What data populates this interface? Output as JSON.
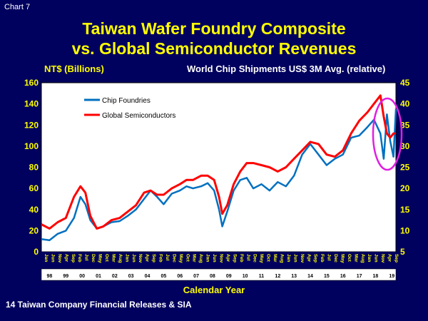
{
  "chart_label": "Chart  7",
  "title_line1": "Taiwan Wafer Foundry Composite",
  "title_line2": "vs. Global Semiconductor Revenues",
  "source": "14 Taiwan Company Financial Releases & SIA",
  "colors": {
    "background": "#00005e",
    "plot": "#ffffff",
    "foundries": "#0070c0",
    "global": "#ff0000",
    "highlight": "#e020e0",
    "axis_text": "#ffff00"
  },
  "chart_data": {
    "type": "line",
    "ylabel": "NT$ (Billions)",
    "y2label": "World Chip Shipments US$ 3M Avg. (relative)",
    "xlabel": "Calendar Year",
    "ylim": [
      0,
      160
    ],
    "y2lim": [
      5,
      45
    ],
    "yticks": [
      0,
      20,
      40,
      60,
      80,
      100,
      120,
      140,
      160
    ],
    "y2ticks": [
      5,
      10,
      15,
      20,
      25,
      30,
      35,
      40,
      45
    ],
    "xlim": [
      1998.0,
      2019.75
    ],
    "year_labels": [
      "98",
      "99",
      "00",
      "01",
      "02",
      "03",
      "04",
      "05",
      "06",
      "07",
      "08",
      "09",
      "10",
      "11",
      "12",
      "13",
      "14",
      "15",
      "16",
      "17",
      "18",
      "19"
    ],
    "month_ticks": [
      "Jan",
      "Jun",
      "Nov",
      "Apr",
      "Sep",
      "Feb",
      "Jul",
      "Dec",
      "May",
      "Oct",
      "Mar",
      "Aug",
      "Jan",
      "Jun",
      "Nov",
      "Apr",
      "Sep",
      "Feb",
      "Jul",
      "Dec",
      "May",
      "Oct",
      "Mar",
      "Aug",
      "Jan",
      "Jun",
      "Nov",
      "Apr",
      "Sep",
      "Feb",
      "Jul",
      "Dec",
      "May",
      "Oct",
      "Mar",
      "Aug",
      "Jan",
      "Jun",
      "Nov",
      "Apr",
      "Sep",
      "Feb",
      "Jul",
      "Dec",
      "May",
      "Oct",
      "Mar",
      "Aug",
      "Jan",
      "Jun",
      "Nov",
      "Apr",
      "Sep"
    ],
    "legend_placement": "top-left",
    "annotation": "ellipse highlighting 2018–2019",
    "series": [
      {
        "name": "Chip Foundries",
        "axis": "left",
        "x": [
          1998.0,
          1998.5,
          1999.0,
          1999.5,
          2000.0,
          2000.4,
          2000.7,
          2001.0,
          2001.4,
          2001.8,
          2002.3,
          2002.8,
          2003.3,
          2003.8,
          2004.3,
          2004.7,
          2005.1,
          2005.5,
          2006.0,
          2006.5,
          2006.9,
          2007.3,
          2007.8,
          2008.2,
          2008.6,
          2008.9,
          2009.1,
          2009.4,
          2009.8,
          2010.2,
          2010.6,
          2011.0,
          2011.5,
          2012.0,
          2012.5,
          2013.0,
          2013.5,
          2014.0,
          2014.5,
          2015.0,
          2015.5,
          2016.0,
          2016.5,
          2017.0,
          2017.5,
          2018.0,
          2018.4,
          2018.8,
          2019.0,
          2019.2,
          2019.4,
          2019.6,
          2019.75
        ],
        "y": [
          12,
          11,
          17,
          20,
          32,
          52,
          45,
          30,
          22,
          24,
          28,
          29,
          34,
          40,
          50,
          58,
          52,
          45,
          55,
          58,
          62,
          60,
          62,
          65,
          58,
          40,
          24,
          38,
          58,
          68,
          70,
          60,
          64,
          58,
          66,
          62,
          72,
          92,
          102,
          92,
          82,
          88,
          92,
          108,
          110,
          118,
          125,
          112,
          88,
          130,
          105,
          90,
          135
        ]
      },
      {
        "name": "Global Semiconductors",
        "axis": "right",
        "x": [
          1998.0,
          1998.5,
          1999.0,
          1999.5,
          2000.0,
          2000.4,
          2000.7,
          2001.0,
          2001.4,
          2001.8,
          2002.3,
          2002.8,
          2003.3,
          2003.8,
          2004.3,
          2004.7,
          2005.1,
          2005.5,
          2006.0,
          2006.5,
          2006.9,
          2007.3,
          2007.8,
          2008.2,
          2008.6,
          2008.9,
          2009.1,
          2009.4,
          2009.8,
          2010.2,
          2010.6,
          2011.0,
          2011.5,
          2012.0,
          2012.5,
          2013.0,
          2013.5,
          2014.0,
          2014.5,
          2015.0,
          2015.5,
          2016.0,
          2016.5,
          2017.0,
          2017.5,
          2018.0,
          2018.4,
          2018.8,
          2019.0,
          2019.2,
          2019.4,
          2019.6,
          2019.75
        ],
        "y": [
          11.5,
          10.5,
          12,
          13,
          18,
          20.5,
          19,
          13.5,
          10.5,
          11,
          12.5,
          13,
          14.5,
          16,
          19,
          19.5,
          18.5,
          18.5,
          20,
          21,
          22,
          22,
          23,
          23,
          22,
          18,
          14,
          16,
          21,
          24,
          26,
          26,
          25.5,
          25,
          24,
          25,
          27,
          29,
          31,
          30.5,
          28,
          27.5,
          29,
          33,
          36,
          38,
          40,
          42,
          37,
          33,
          32,
          33,
          33
        ]
      }
    ]
  }
}
